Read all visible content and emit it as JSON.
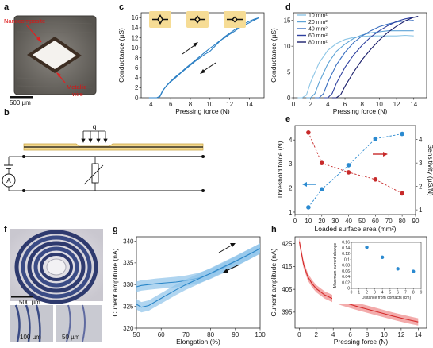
{
  "panels": {
    "a": {
      "letter": "a",
      "label_nanocomposite": "Nanocomposite",
      "label_wire_line1": "Metallic",
      "label_wire_line2": "wire",
      "scale_bar": "500 µm"
    },
    "b": {
      "letter": "b",
      "load_label": "q",
      "ammeter_label": "A"
    },
    "c": {
      "letter": "c",
      "chart_data": {
        "type": "line",
        "xlabel": "Pressing force (N)",
        "ylabel": "Conductance (µS)",
        "xlim": [
          3,
          15.5
        ],
        "ylim": [
          0,
          17
        ],
        "xticks": [
          4,
          6,
          8,
          10,
          12,
          14
        ],
        "yticks": [
          0,
          2,
          4,
          6,
          8,
          10,
          12,
          14,
          16
        ],
        "color": "#2b7fc4",
        "series": [
          {
            "x": [
              3.8,
              4.2,
              4.6,
              4.9,
              5.2,
              5.6,
              6.0,
              6.5,
              7.0,
              7.5,
              8.0,
              8.5,
              9.0,
              9.5,
              10.0,
              10.5,
              11.0,
              11.5,
              12.0,
              12.5,
              13.0,
              13.5,
              14.0,
              14.5,
              15.0
            ],
            "y": [
              0,
              0,
              0,
              0.3,
              1.5,
              2.4,
              3.2,
              4.0,
              4.9,
              5.7,
              6.5,
              7.3,
              8.0,
              8.7,
              9.3,
              10.3,
              11.3,
              12.2,
              12.9,
              13.6,
              14.2,
              14.8,
              15.3,
              15.7,
              16.0
            ]
          },
          {
            "x": [
              15.0,
              14.5,
              14.0,
              13.5,
              13.0,
              12.5,
              12.0,
              11.5,
              11.0,
              10.5,
              10.0,
              9.5,
              9.0,
              8.5,
              8.0,
              7.5,
              7.0,
              6.5,
              6.0,
              5.6,
              5.2,
              4.9,
              4.6,
              4.2,
              3.8
            ],
            "y": [
              16.0,
              15.5,
              15.0,
              14.5,
              14.0,
              13.3,
              12.7,
              12.0,
              11.4,
              10.6,
              9.9,
              9.1,
              8.3,
              7.5,
              6.7,
              5.9,
              5.0,
              4.2,
              3.3,
              2.5,
              1.4,
              0.2,
              0,
              0,
              0
            ]
          }
        ]
      }
    },
    "d": {
      "letter": "d",
      "chart_data": {
        "type": "line",
        "xlabel": "Pressing force (N)",
        "ylabel": "Conductance (µS)",
        "xlim": [
          0,
          15.5
        ],
        "ylim": [
          0,
          16.5
        ],
        "xticks": [
          0,
          2,
          4,
          6,
          8,
          10,
          12,
          14
        ],
        "yticks": [
          0,
          5,
          10,
          15
        ],
        "legend_position": "top-left",
        "series": [
          {
            "name": "10 mm²",
            "color": "#8ec6e6",
            "x": [
              0.5,
              1.0,
              1.5,
              2.0,
              3.0,
              4.0,
              5.0,
              6.0,
              7.0,
              8.0,
              9.0,
              10.0,
              11.0,
              12.0,
              13.0,
              14.0
            ],
            "y": [
              0,
              0,
              0.5,
              3.0,
              6.8,
              9.2,
              10.5,
              11.3,
              11.7,
              11.9,
              12.0,
              12.0,
              12.0,
              12.0,
              12.1,
              12.0
            ]
          },
          {
            "name": "20 mm²",
            "color": "#5ea3d6",
            "x": [
              1.5,
              2.0,
              2.5,
              3.0,
              4.0,
              5.0,
              6.0,
              7.0,
              8.0,
              9.0,
              10.0,
              11.0,
              12.0,
              13.0,
              14.0
            ],
            "y": [
              0,
              0,
              0.8,
              3.0,
              6.6,
              9.0,
              10.4,
              11.5,
              12.2,
              12.6,
              12.8,
              13.0,
              13.0,
              13.0,
              13.0
            ]
          },
          {
            "name": "40 mm²",
            "color": "#3a6fc0",
            "x": [
              2.5,
              3.0,
              3.5,
              4.0,
              5.0,
              6.0,
              7.0,
              8.0,
              9.0,
              10.0,
              11.0,
              12.0,
              13.0,
              14.0
            ],
            "y": [
              0,
              0,
              0.8,
              3.0,
              6.4,
              8.8,
              10.7,
              12.0,
              13.0,
              13.8,
              14.3,
              14.7,
              14.9,
              15.0
            ]
          },
          {
            "name": "60 mm²",
            "color": "#2d3f9e",
            "x": [
              3.5,
              4.0,
              4.5,
              5.0,
              6.0,
              7.0,
              8.0,
              9.0,
              10.0,
              11.0,
              12.0,
              13.0,
              14.0,
              14.5
            ],
            "y": [
              0,
              0,
              0.8,
              2.8,
              5.9,
              8.3,
              10.2,
              11.8,
              13.0,
              14.0,
              14.8,
              15.3,
              15.6,
              15.7
            ]
          },
          {
            "name": "80 mm²",
            "color": "#1b1f6b",
            "x": [
              4.5,
              5.0,
              5.5,
              6.0,
              7.0,
              8.0,
              9.0,
              10.0,
              11.0,
              12.0,
              13.0,
              14.0,
              14.5
            ],
            "y": [
              0,
              0,
              0.6,
              2.2,
              5.0,
              7.4,
              9.4,
              11.2,
              12.7,
              13.9,
              14.9,
              15.6,
              15.8
            ]
          }
        ]
      }
    },
    "e": {
      "letter": "e",
      "chart_data": {
        "type": "scatter",
        "xlabel": "Loaded surface area (mm²)",
        "ylabel": "Threshold force (N)",
        "ylabel_right": "Sensitivity (µS/N)",
        "xlim": [
          0,
          90
        ],
        "ylim": [
          0.9,
          4.6
        ],
        "ylim_right": [
          0.8,
          4.6
        ],
        "xticks": [
          0,
          10,
          20,
          30,
          40,
          50,
          60,
          70,
          80,
          90
        ],
        "yticks": [
          1,
          2,
          3,
          4
        ],
        "yticks_right": [
          1,
          2,
          3,
          4
        ],
        "series": [
          {
            "axis": "left",
            "color": "#2b8ad0",
            "x": [
              10,
              20,
              40,
              60,
              80
            ],
            "y": [
              1.2,
              1.95,
              2.95,
              4.05,
              4.25
            ]
          },
          {
            "axis": "right",
            "color": "#c72a2a",
            "x": [
              10,
              20,
              40,
              60,
              80
            ],
            "y": [
              4.3,
              3.0,
              2.6,
              2.3,
              1.7
            ]
          }
        ]
      }
    },
    "f": {
      "letter": "f",
      "scale_main": "500 µm",
      "scale_left": "100 µm",
      "scale_right": "50 µm"
    },
    "g": {
      "letter": "g",
      "chart_data": {
        "type": "line",
        "xlabel": "Elongation (%)",
        "ylabel": "Current amplitude (nA)",
        "xlim": [
          50,
          100
        ],
        "ylim": [
          320,
          341
        ],
        "xticks": [
          50,
          60,
          70,
          80,
          90,
          100
        ],
        "yticks": [
          320,
          325,
          330,
          335,
          340
        ],
        "color": "#2a86c8",
        "band": 1.2,
        "series": [
          {
            "x": [
              50,
              52,
              55,
              58,
              62,
              66,
              70,
              75,
              80,
              85,
              90,
              95,
              100
            ],
            "y": [
              329.5,
              329.8,
              330.0,
              330.2,
              330.4,
              330.6,
              330.9,
              331.5,
              332.5,
              333.8,
              335.3,
              336.8,
              338.3
            ]
          },
          {
            "x": [
              50,
              52,
              55,
              58,
              62,
              66,
              70,
              75,
              80,
              85,
              90,
              95,
              100
            ],
            "y": [
              325.5,
              324.8,
              325.2,
              326.2,
              327.5,
              328.8,
              330.0,
              331.3,
              332.6,
              334.0,
              335.4,
              336.8,
              338.3
            ]
          }
        ]
      }
    },
    "h": {
      "letter": "h",
      "chart_data": {
        "type": "line",
        "xlabel": "Pressing force (N)",
        "ylabel": "Current amplitude (nA)",
        "xlim": [
          -0.5,
          15
        ],
        "ylim": [
          388,
          428
        ],
        "xticks": [
          0,
          2,
          4,
          6,
          8,
          10,
          12,
          14
        ],
        "yticks": [
          395,
          405,
          415,
          425
        ],
        "color": "#d42a2a",
        "band": 1.6,
        "series": [
          {
            "x": [
              0,
              0.5,
              1.0,
              1.5,
              2.0,
              3.0,
              4.0,
              5.0,
              6.0,
              7.0,
              8.0,
              9.0,
              10.0,
              11.0,
              12.0,
              13.0,
              14.0
            ],
            "y": [
              426,
              416,
              410.5,
              407.5,
              405.3,
              402.5,
              400.8,
              399.5,
              398.4,
              397.3,
              396.3,
              395.3,
              394.3,
              393.3,
              392.4,
              391.5,
              390.7
            ]
          }
        ],
        "inset": {
          "type": "scatter",
          "xlabel": "Distance from contacts (cm)",
          "ylabel": "Maximum current change",
          "xlim": [
            0,
            9
          ],
          "ylim": [
            0,
            0.16
          ],
          "xticks": [
            0,
            1,
            2,
            3,
            4,
            5,
            6,
            7,
            8,
            9
          ],
          "yticks": [
            0,
            0.02,
            0.04,
            0.06,
            0.08,
            0.1,
            0.12,
            0.14,
            0.16
          ],
          "color": "#2b8ad0",
          "x": [
            2,
            4,
            6,
            8
          ],
          "y": [
            0.143,
            0.108,
            0.068,
            0.059
          ]
        }
      }
    }
  }
}
